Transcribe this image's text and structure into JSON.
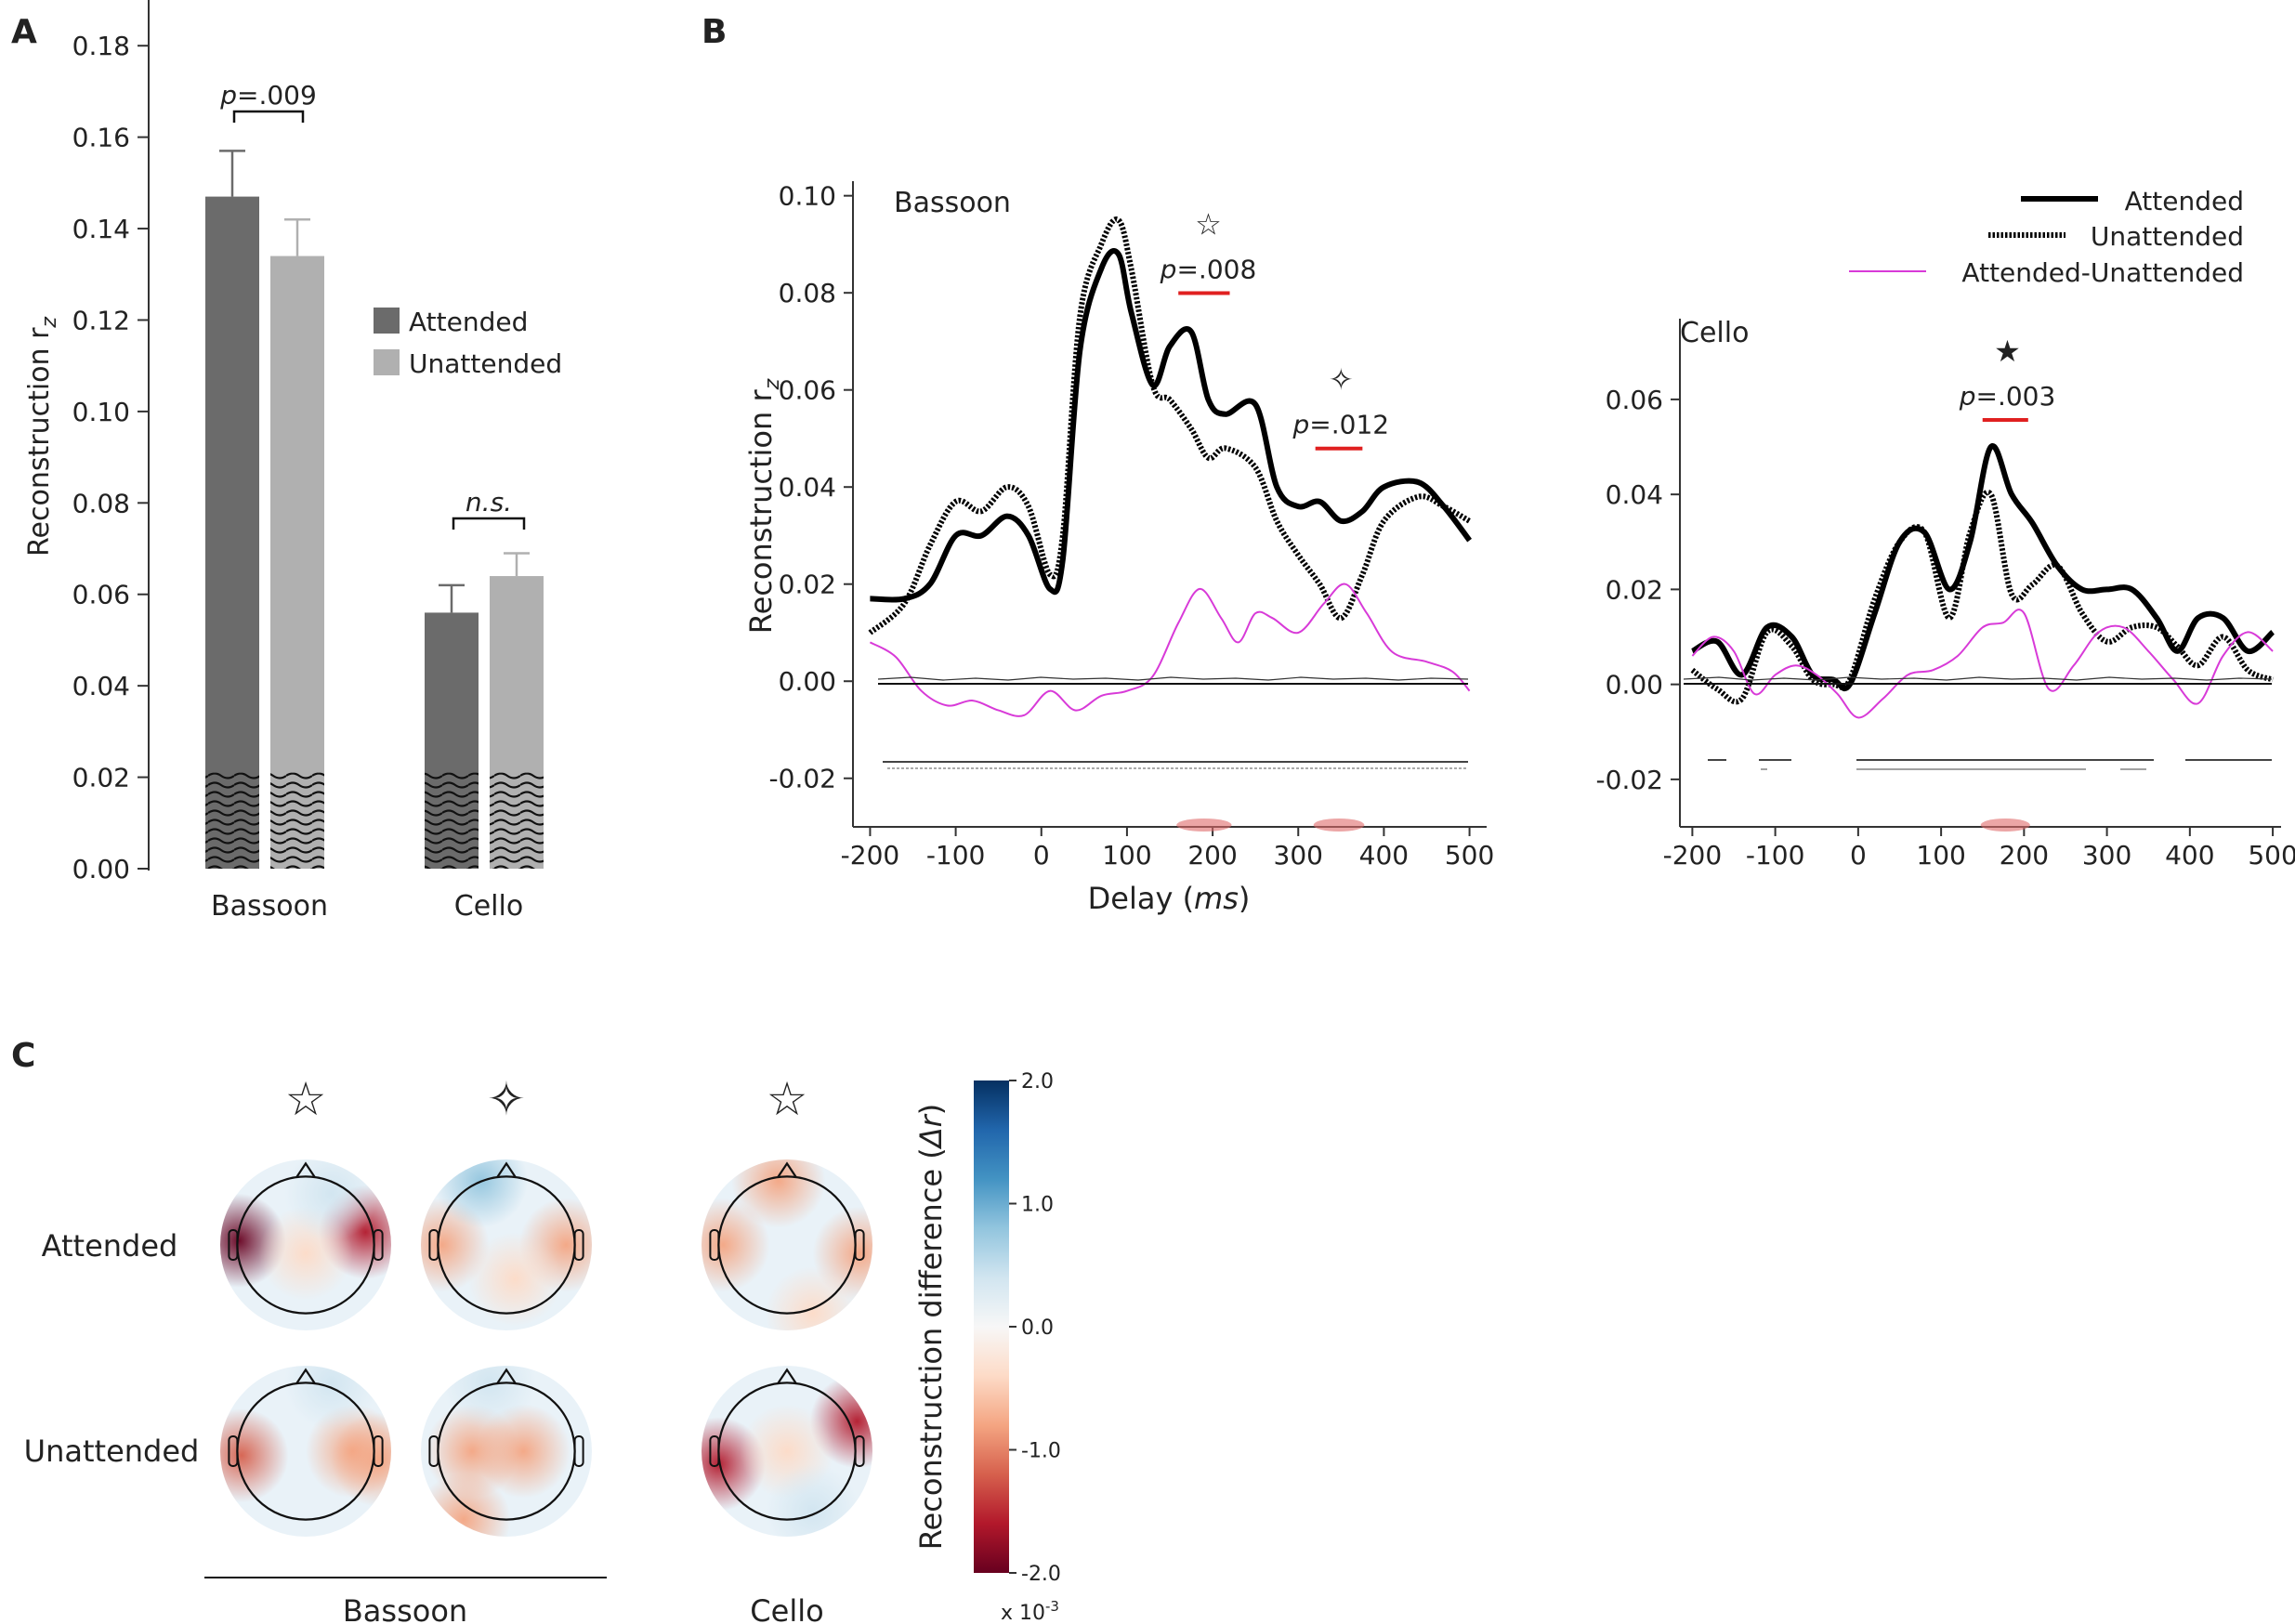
{
  "panels": {
    "a": {
      "letter": "A"
    },
    "b": {
      "letter": "B"
    },
    "c": {
      "letter": "C"
    }
  },
  "chart_data": [
    {
      "id": "A",
      "type": "bar",
      "ylabel": "Reconstruction r",
      "ylabel_sub": "z",
      "ylim": [
        0,
        0.19
      ],
      "yticks": [
        0.0,
        0.02,
        0.04,
        0.06,
        0.08,
        0.1,
        0.12,
        0.14,
        0.16,
        0.18
      ],
      "ytick_labels": [
        "0.00",
        "0.02",
        "0.04",
        "0.06",
        "0.08",
        "0.10",
        "0.12",
        "0.14",
        "0.16",
        "0.18"
      ],
      "categories": [
        "Bassoon",
        "Cello"
      ],
      "series": [
        {
          "name": "Attended",
          "color": "#6b6b6b",
          "values": [
            0.147,
            0.056
          ],
          "errors": [
            0.01,
            0.006
          ]
        },
        {
          "name": "Unattended",
          "color": "#b0b0b0",
          "values": [
            0.134,
            0.064
          ],
          "errors": [
            0.008,
            0.005
          ]
        }
      ],
      "chance_level": 0.021,
      "annotations": [
        {
          "group": "Bassoon",
          "p_prefix": "p",
          "text": "=.009"
        },
        {
          "group": "Cello",
          "text": "n.s."
        }
      ]
    },
    {
      "id": "B-bassoon",
      "type": "line",
      "title": "Bassoon",
      "xlabel": "Delay",
      "xlabel_unit": "ms",
      "ylabel": "Reconstruction r",
      "ylabel_sub": "z",
      "xlim": [
        -220,
        520
      ],
      "ylim": [
        -0.03,
        0.103
      ],
      "xticks": [
        -200,
        -100,
        0,
        100,
        200,
        300,
        400,
        500
      ],
      "xtick_labels": [
        "-200",
        "-100",
        "0",
        "100",
        "200",
        "300",
        "400",
        "500"
      ],
      "yticks": [
        -0.02,
        0.0,
        0.02,
        0.04,
        0.06,
        0.08,
        0.1
      ],
      "ytick_labels": [
        "-0.02",
        "0.00",
        "0.02",
        "0.04",
        "0.06",
        "0.08",
        "0.10"
      ],
      "series": [
        {
          "name": "Attended",
          "style": "solid",
          "color": "#000000",
          "x": [
            -200,
            -160,
            -130,
            -100,
            -70,
            -40,
            -15,
            10,
            25,
            45,
            70,
            90,
            105,
            130,
            150,
            175,
            195,
            215,
            250,
            275,
            300,
            325,
            350,
            375,
            400,
            440,
            470,
            500
          ],
          "y": [
            0.017,
            0.017,
            0.02,
            0.03,
            0.03,
            0.034,
            0.03,
            0.019,
            0.025,
            0.068,
            0.085,
            0.088,
            0.076,
            0.061,
            0.069,
            0.072,
            0.058,
            0.055,
            0.057,
            0.04,
            0.036,
            0.037,
            0.033,
            0.035,
            0.04,
            0.041,
            0.036,
            0.029
          ]
        },
        {
          "name": "Unattended",
          "style": "dotted",
          "color": "#000000",
          "x": [
            -200,
            -160,
            -130,
            -100,
            -70,
            -40,
            -15,
            10,
            25,
            45,
            70,
            90,
            105,
            130,
            150,
            175,
            195,
            215,
            250,
            275,
            300,
            325,
            350,
            375,
            400,
            440,
            470,
            500
          ],
          "y": [
            0.01,
            0.016,
            0.028,
            0.037,
            0.035,
            0.04,
            0.036,
            0.022,
            0.03,
            0.075,
            0.09,
            0.095,
            0.085,
            0.061,
            0.058,
            0.052,
            0.046,
            0.048,
            0.044,
            0.033,
            0.026,
            0.02,
            0.013,
            0.022,
            0.033,
            0.038,
            0.036,
            0.033
          ]
        },
        {
          "name": "Attended-Unattended",
          "style": "thin",
          "color": "#d83ad8",
          "x": [
            -200,
            -170,
            -140,
            -110,
            -80,
            -50,
            -20,
            10,
            40,
            70,
            100,
            130,
            160,
            185,
            210,
            230,
            250,
            270,
            300,
            330,
            355,
            380,
            410,
            450,
            480,
            500
          ],
          "y": [
            0.008,
            0.005,
            -0.002,
            -0.005,
            -0.004,
            -0.006,
            -0.007,
            -0.002,
            -0.006,
            -0.003,
            -0.002,
            0.001,
            0.012,
            0.019,
            0.013,
            0.008,
            0.014,
            0.013,
            0.01,
            0.016,
            0.02,
            0.014,
            0.006,
            0.004,
            0.002,
            -0.002
          ]
        }
      ],
      "markers": [
        {
          "symbol": "☆",
          "p_prefix": "p",
          "text": "=.008",
          "window": [
            160,
            220
          ],
          "x": 195,
          "y": 0.092
        },
        {
          "symbol": "✧",
          "p_prefix": "p",
          "text": "=.012",
          "window": [
            320,
            375
          ],
          "x": 350,
          "y": 0.06
        }
      ]
    },
    {
      "id": "B-cello",
      "type": "line",
      "title": "Cello",
      "xlim": [
        -215,
        510
      ],
      "ylim": [
        -0.03,
        0.077
      ],
      "xticks": [
        -200,
        -100,
        0,
        100,
        200,
        300,
        400,
        500
      ],
      "xtick_labels": [
        "-200",
        "-100",
        "0",
        "100",
        "200",
        "300",
        "400",
        "500"
      ],
      "yticks": [
        -0.02,
        0.0,
        0.02,
        0.04,
        0.06
      ],
      "ytick_labels": [
        "-0.02",
        "0.00",
        "0.02",
        "0.04",
        "0.06"
      ],
      "series": [
        {
          "name": "Attended",
          "style": "solid",
          "color": "#000000",
          "x": [
            -200,
            -170,
            -140,
            -110,
            -80,
            -55,
            -30,
            -10,
            20,
            50,
            80,
            110,
            135,
            160,
            185,
            210,
            240,
            270,
            300,
            330,
            360,
            385,
            410,
            440,
            470,
            500
          ],
          "y": [
            0.007,
            0.009,
            0.002,
            0.012,
            0.01,
            0.002,
            0.001,
            0.0,
            0.015,
            0.03,
            0.032,
            0.02,
            0.03,
            0.05,
            0.04,
            0.034,
            0.025,
            0.02,
            0.02,
            0.02,
            0.014,
            0.007,
            0.014,
            0.014,
            0.007,
            0.011
          ]
        },
        {
          "name": "Unattended",
          "style": "dotted",
          "color": "#000000",
          "x": [
            -200,
            -170,
            -140,
            -110,
            -80,
            -55,
            -30,
            -10,
            20,
            50,
            80,
            110,
            135,
            160,
            185,
            210,
            240,
            270,
            300,
            330,
            360,
            385,
            410,
            440,
            470,
            500
          ],
          "y": [
            0.003,
            -0.001,
            -0.003,
            0.011,
            0.008,
            0.001,
            0.0,
            0.001,
            0.018,
            0.03,
            0.032,
            0.014,
            0.032,
            0.04,
            0.019,
            0.021,
            0.025,
            0.015,
            0.009,
            0.012,
            0.012,
            0.008,
            0.004,
            0.01,
            0.003,
            0.001
          ]
        },
        {
          "name": "Attended-Unattended",
          "style": "thin",
          "color": "#d83ad8",
          "x": [
            -200,
            -175,
            -150,
            -125,
            -100,
            -75,
            -50,
            -25,
            0,
            30,
            60,
            90,
            120,
            150,
            175,
            200,
            230,
            260,
            290,
            320,
            350,
            380,
            410,
            440,
            470,
            500
          ],
          "y": [
            0.006,
            0.01,
            0.007,
            -0.002,
            0.002,
            0.004,
            0.002,
            -0.002,
            -0.007,
            -0.003,
            0.002,
            0.003,
            0.006,
            0.012,
            0.013,
            0.015,
            -0.001,
            0.004,
            0.011,
            0.012,
            0.007,
            0.001,
            -0.004,
            0.006,
            0.011,
            0.007
          ]
        }
      ],
      "markers": [
        {
          "symbol": "★",
          "p_prefix": "p",
          "text": "=.003",
          "window": [
            150,
            205
          ],
          "x": 180,
          "y": 0.068
        }
      ]
    },
    {
      "id": "C",
      "type": "heatmap",
      "rows": [
        "Attended",
        "Unattended"
      ],
      "groups": [
        {
          "label": "Bassoon",
          "columns": [
            {
              "symbol": "☆"
            },
            {
              "symbol": "✧"
            }
          ]
        },
        {
          "label": "Cello",
          "columns": [
            {
              "symbol": "☆"
            }
          ]
        }
      ],
      "colorbar": {
        "label": "Reconstruction difference (",
        "label_sym": "Δr",
        "label_end": ")",
        "ticks": [
          2.0,
          1.0,
          0.0,
          -1.0,
          -2.0
        ],
        "tick_labels": [
          "2.0",
          "1.0",
          "0.0",
          "-1.0",
          "-2.0"
        ],
        "range": [
          -2.0,
          2.0
        ],
        "scale_text": "x 10",
        "scale_exp": "-3",
        "colors": [
          "#67001f",
          "#b2182b",
          "#d6604d",
          "#f4a582",
          "#fddbc7",
          "#f7f7f7",
          "#d1e5f0",
          "#92c5de",
          "#4393c3",
          "#2166ac",
          "#053061"
        ]
      },
      "maps": [
        [
          {
            "blobs": [
              {
                "v": -1.9,
                "ax": -0.78,
                "ay": -0.05
              },
              {
                "v": -1.5,
                "ax": 0.7,
                "ay": -0.15
              },
              {
                "v": -0.6,
                "ax": 0.0,
                "ay": 0.1
              },
              {
                "v": 0.4,
                "ax": 0.3,
                "ay": -0.6
              }
            ]
          },
          {
            "blobs": [
              {
                "v": -0.9,
                "ax": -0.75,
                "ay": 0.0
              },
              {
                "v": -0.7,
                "ax": 0.7,
                "ay": 0.0
              },
              {
                "v": 0.6,
                "ax": -0.3,
                "ay": -0.75
              },
              {
                "v": -0.4,
                "ax": 0.1,
                "ay": 0.4
              }
            ]
          },
          {
            "blobs": [
              {
                "v": -1.0,
                "ax": -0.75,
                "ay": 0.0
              },
              {
                "v": -0.9,
                "ax": 0.85,
                "ay": 0.1
              },
              {
                "v": -0.7,
                "ax": -0.1,
                "ay": -0.75
              },
              {
                "v": -0.6,
                "ax": 0.3,
                "ay": 0.8
              }
            ]
          }
        ],
        [
          {
            "blobs": [
              {
                "v": -1.2,
                "ax": -0.75,
                "ay": 0.05
              },
              {
                "v": -1.0,
                "ax": 0.55,
                "ay": 0.0
              },
              {
                "v": -0.8,
                "ax": 0.85,
                "ay": 0.1
              },
              {
                "v": 0.4,
                "ax": 0.3,
                "ay": -0.8
              }
            ]
          },
          {
            "blobs": [
              {
                "v": -0.7,
                "ax": -0.4,
                "ay": 0.0
              },
              {
                "v": -0.7,
                "ax": 0.2,
                "ay": 0.0
              },
              {
                "v": -0.9,
                "ax": -0.5,
                "ay": 0.8
              },
              {
                "v": 0.5,
                "ax": -0.2,
                "ay": -0.8
              }
            ]
          },
          {
            "blobs": [
              {
                "v": -1.5,
                "ax": -0.8,
                "ay": 0.15
              },
              {
                "v": -1.7,
                "ax": 0.82,
                "ay": -0.35
              },
              {
                "v": -0.6,
                "ax": 0.0,
                "ay": 0.0
              },
              {
                "v": 0.3,
                "ax": 0.3,
                "ay": 0.7
              }
            ]
          }
        ]
      ]
    }
  ]
}
